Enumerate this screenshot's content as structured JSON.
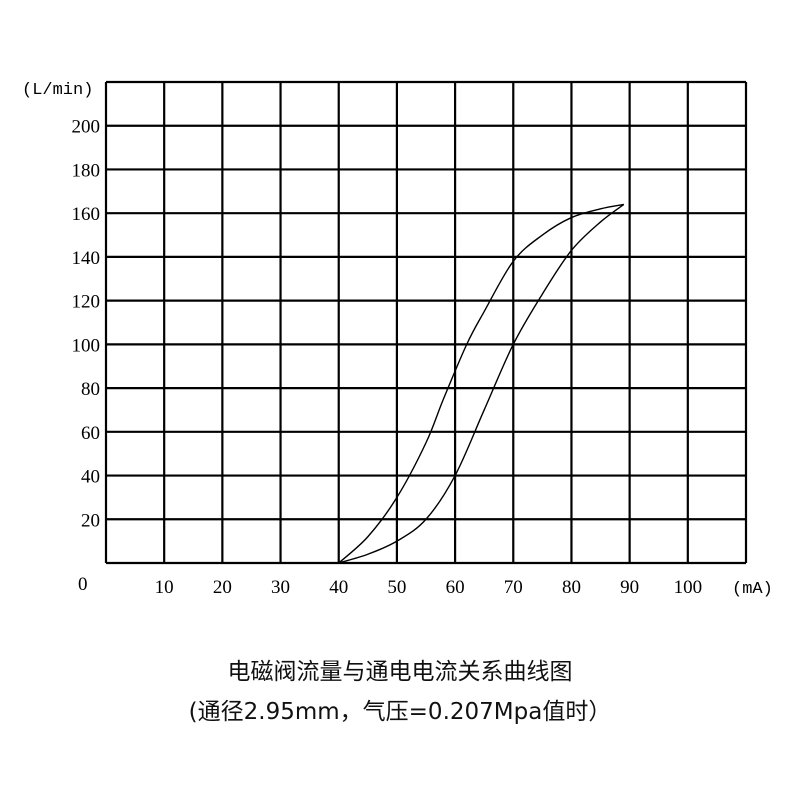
{
  "chart_data": {
    "type": "line",
    "title": "电磁阀流量与通电电流关系曲线图",
    "subtitle": "(通径2.95mm，气压=0.207Mpa值时）",
    "ylabel": "(L/min)",
    "xlabel": "(mA)",
    "origin_label": "0",
    "xlim": [
      0,
      110
    ],
    "ylim": [
      0,
      220
    ],
    "x_ticks": [
      10,
      20,
      30,
      40,
      50,
      60,
      70,
      80,
      90,
      100
    ],
    "y_ticks": [
      20,
      40,
      60,
      80,
      100,
      120,
      140,
      160,
      180,
      200
    ],
    "grid": true,
    "series": [
      {
        "x": [
          40,
          45,
          50,
          55,
          58,
          62,
          65,
          70,
          75,
          80,
          85,
          89
        ],
        "y": [
          0,
          12,
          30,
          55,
          75,
          100,
          115,
          138,
          150,
          158,
          162,
          164
        ]
      },
      {
        "x": [
          40,
          45,
          50,
          55,
          60,
          65,
          70,
          75,
          80,
          85,
          89
        ],
        "y": [
          0,
          4,
          10,
          20,
          40,
          70,
          100,
          123,
          143,
          156,
          164
        ]
      }
    ]
  }
}
